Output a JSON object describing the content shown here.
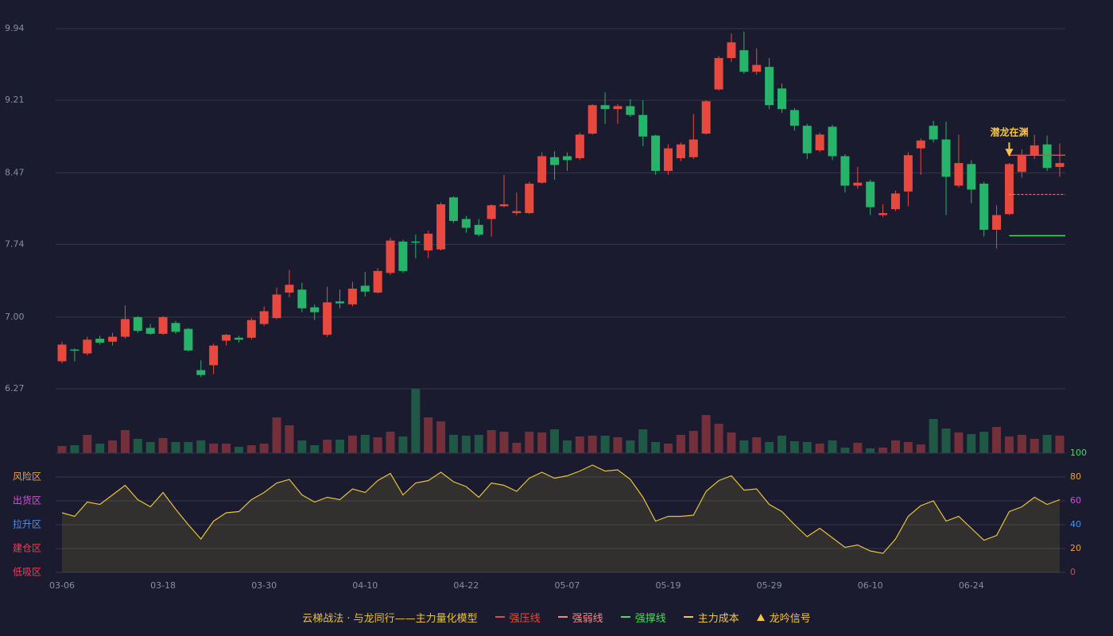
{
  "chart_data": {
    "type": "candlestick",
    "categories": [
      "03-06",
      null,
      null,
      null,
      null,
      null,
      null,
      null,
      "03-18",
      null,
      null,
      null,
      null,
      null,
      null,
      null,
      "03-30",
      null,
      null,
      null,
      null,
      null,
      null,
      null,
      "04-10",
      null,
      null,
      null,
      null,
      null,
      null,
      null,
      "04-22",
      null,
      null,
      null,
      null,
      null,
      null,
      null,
      "05-07",
      null,
      null,
      null,
      null,
      null,
      null,
      null,
      "05-19",
      null,
      null,
      null,
      null,
      null,
      null,
      null,
      "05-29",
      null,
      null,
      null,
      null,
      null,
      null,
      null,
      "06-10",
      null,
      null,
      null,
      null,
      null,
      null,
      null,
      "06-24",
      null,
      null,
      null,
      null,
      null,
      null,
      null
    ],
    "open": [
      6.55,
      6.67,
      6.63,
      6.78,
      6.75,
      6.8,
      7.0,
      6.89,
      6.83,
      6.94,
      6.88,
      6.46,
      6.51,
      6.76,
      6.79,
      6.79,
      6.93,
      6.99,
      7.25,
      7.28,
      7.1,
      6.82,
      7.16,
      7.13,
      7.32,
      7.25,
      7.45,
      7.77,
      7.77,
      7.68,
      7.69,
      8.22,
      8.0,
      7.94,
      8.0,
      8.13,
      8.06,
      8.06,
      8.37,
      8.63,
      8.64,
      8.62,
      8.87,
      9.16,
      9.12,
      9.15,
      9.06,
      8.85,
      8.49,
      8.62,
      8.63,
      8.87,
      9.32,
      9.64,
      9.72,
      9.5,
      9.55,
      9.33,
      9.11,
      8.95,
      8.7,
      8.94,
      8.64,
      8.34,
      8.38,
      8.04,
      8.1,
      8.28,
      8.72,
      8.95,
      8.81,
      8.34,
      8.56,
      8.36,
      7.89,
      8.05,
      8.48,
      8.65,
      8.76,
      8.53
    ],
    "close": [
      6.72,
      6.66,
      6.77,
      6.74,
      6.8,
      6.98,
      6.86,
      6.83,
      7.0,
      6.85,
      6.66,
      6.41,
      6.71,
      6.82,
      6.77,
      6.97,
      7.06,
      7.23,
      7.33,
      7.09,
      7.05,
      7.15,
      7.14,
      7.29,
      7.26,
      7.47,
      7.78,
      7.47,
      7.76,
      7.85,
      8.15,
      7.98,
      7.91,
      7.84,
      8.14,
      8.15,
      8.08,
      8.36,
      8.64,
      8.55,
      8.6,
      8.86,
      9.16,
      9.12,
      9.15,
      9.06,
      8.84,
      8.49,
      8.72,
      8.76,
      8.81,
      9.2,
      9.64,
      9.8,
      9.5,
      9.57,
      9.16,
      9.12,
      8.95,
      8.67,
      8.86,
      8.64,
      8.34,
      8.37,
      8.12,
      8.06,
      8.26,
      8.65,
      8.8,
      8.81,
      8.43,
      8.57,
      8.3,
      7.89,
      8.04,
      8.56,
      8.65,
      8.75,
      8.52,
      8.57
    ],
    "high": [
      6.75,
      6.68,
      6.8,
      6.81,
      6.84,
      7.12,
      7.01,
      6.93,
      7.01,
      6.96,
      6.89,
      6.56,
      6.73,
      6.83,
      6.81,
      6.99,
      7.11,
      7.3,
      7.48,
      7.35,
      7.13,
      7.31,
      7.28,
      7.36,
      7.46,
      7.5,
      7.81,
      7.79,
      7.84,
      7.88,
      8.17,
      8.23,
      8.03,
      8.0,
      8.15,
      8.45,
      8.27,
      8.38,
      8.68,
      8.69,
      8.68,
      8.88,
      9.17,
      9.29,
      9.17,
      9.22,
      9.21,
      8.86,
      8.76,
      8.78,
      9.07,
      9.21,
      9.66,
      9.89,
      9.91,
      9.74,
      9.64,
      9.38,
      9.13,
      8.97,
      8.88,
      8.96,
      8.66,
      8.53,
      8.4,
      8.15,
      8.29,
      8.68,
      8.82,
      9.0,
      8.99,
      8.86,
      8.6,
      8.38,
      8.14,
      8.57,
      8.71,
      8.86,
      8.85,
      8.77
    ],
    "low": [
      6.53,
      6.55,
      6.61,
      6.72,
      6.71,
      6.78,
      6.84,
      6.82,
      6.82,
      6.83,
      6.65,
      6.39,
      6.42,
      6.71,
      6.74,
      6.77,
      6.91,
      6.98,
      7.2,
      7.05,
      6.97,
      6.8,
      7.09,
      7.11,
      7.21,
      7.24,
      7.43,
      7.45,
      7.6,
      7.6,
      7.68,
      7.96,
      7.86,
      7.82,
      7.82,
      8.12,
      8.04,
      8.05,
      8.36,
      8.4,
      8.49,
      8.6,
      8.86,
      8.97,
      8.97,
      9.04,
      8.74,
      8.45,
      8.45,
      8.59,
      8.61,
      8.86,
      9.31,
      9.6,
      9.48,
      9.47,
      9.12,
      9.08,
      8.9,
      8.61,
      8.68,
      8.6,
      8.27,
      8.31,
      8.04,
      8.02,
      8.08,
      8.13,
      8.45,
      8.78,
      8.04,
      8.32,
      8.16,
      7.82,
      7.7,
      8.04,
      8.42,
      8.61,
      8.49,
      8.43
    ],
    "ylim": [
      6.27,
      9.94
    ],
    "yticks": [
      9.94,
      9.21,
      8.47,
      7.74,
      {
        "value": 7,
        "label": "7.00"
      },
      6.27
    ],
    "grid": true,
    "up_color": "#e8493f",
    "down_color": "#27b46a",
    "volume": {
      "values": [
        9,
        10,
        23,
        12,
        16,
        29,
        18,
        14,
        19,
        14,
        14,
        16,
        12,
        12,
        8,
        10,
        12,
        45,
        35,
        16,
        10,
        17,
        17,
        22,
        23,
        20,
        27,
        21,
        81,
        45,
        40,
        23,
        22,
        23,
        29,
        27,
        13,
        27,
        26,
        30,
        16,
        21,
        22,
        22,
        20,
        16,
        30,
        14,
        12,
        23,
        28,
        48,
        37,
        26,
        16,
        20,
        14,
        22,
        15,
        14,
        12,
        16,
        7,
        13,
        6,
        7,
        16,
        14,
        11,
        43,
        31,
        26,
        24,
        27,
        33,
        21,
        23,
        18,
        23,
        22
      ],
      "ylim": [
        0,
        81
      ],
      "up_color": "#74303a",
      "down_color": "#1f5844"
    },
    "oscillator": {
      "values": [
        50,
        47,
        59,
        57,
        65,
        73,
        61,
        55,
        67,
        53,
        40,
        28,
        43,
        50,
        51,
        61,
        67,
        75,
        78,
        65,
        59,
        63,
        61,
        70,
        67,
        77,
        83,
        65,
        75,
        77,
        84,
        76,
        72,
        63,
        75,
        73,
        68,
        79,
        84,
        79,
        81,
        85,
        90,
        85,
        86,
        78,
        63,
        43,
        47,
        47,
        48,
        68,
        77,
        81,
        69,
        70,
        57,
        51,
        40,
        30,
        37,
        29,
        21,
        23,
        18,
        16,
        28,
        47,
        56,
        60,
        43,
        47,
        37,
        27,
        31,
        51,
        55,
        63,
        57,
        61
      ],
      "color": "#e8c23a",
      "ylim": [
        0,
        100
      ],
      "y2ticks": [
        {
          "value": 100,
          "color": "#4cd964"
        },
        {
          "value": 80,
          "color": "#e8a33c"
        },
        {
          "value": 60,
          "color": "#d94fd9"
        },
        {
          "value": 40,
          "color": "#4f8fe8"
        },
        {
          "value": 20,
          "color": "#e8a33c"
        },
        {
          "value": 0,
          "color": "#e8405a"
        }
      ],
      "zones": [
        {
          "label": "风险区",
          "value": 80,
          "color": "#e8a33c"
        },
        {
          "label": "出货区",
          "value": 60,
          "color": "#d94fd9"
        },
        {
          "label": "拉升区",
          "value": 40,
          "color": "#4f8fe8"
        },
        {
          "label": "建仓区",
          "value": 20,
          "color": "#e8405a"
        },
        {
          "label": "低吸区",
          "value": 0,
          "color": "#e8405a"
        }
      ]
    },
    "signal": {
      "text": "潜龙在渊",
      "index": 75,
      "color": "#f5c542"
    },
    "levels": [
      {
        "name": "强压线",
        "value": 8.65,
        "color": "#e8493f",
        "dash": false
      },
      {
        "name": "强弱线",
        "value": 8.25,
        "color": "#f08a8a",
        "dash": true
      },
      {
        "name": "强撑线",
        "value": 7.83,
        "color": "#4cd964",
        "dash": false
      }
    ],
    "legend_title": "云梯战法 · 与龙同行——主力量化模型",
    "legend": [
      {
        "name": "强压线",
        "color": "#e8493f",
        "style": "solid"
      },
      {
        "name": "强弱线",
        "color": "#f08a8a",
        "style": "dash"
      },
      {
        "name": "强撑线",
        "color": "#4cd964",
        "style": "solid"
      },
      {
        "name": "主力成本",
        "color": "#f5c542",
        "style": "dash"
      },
      {
        "name": "龙吟信号",
        "color": "#f5c542",
        "style": "triangle"
      }
    ]
  }
}
